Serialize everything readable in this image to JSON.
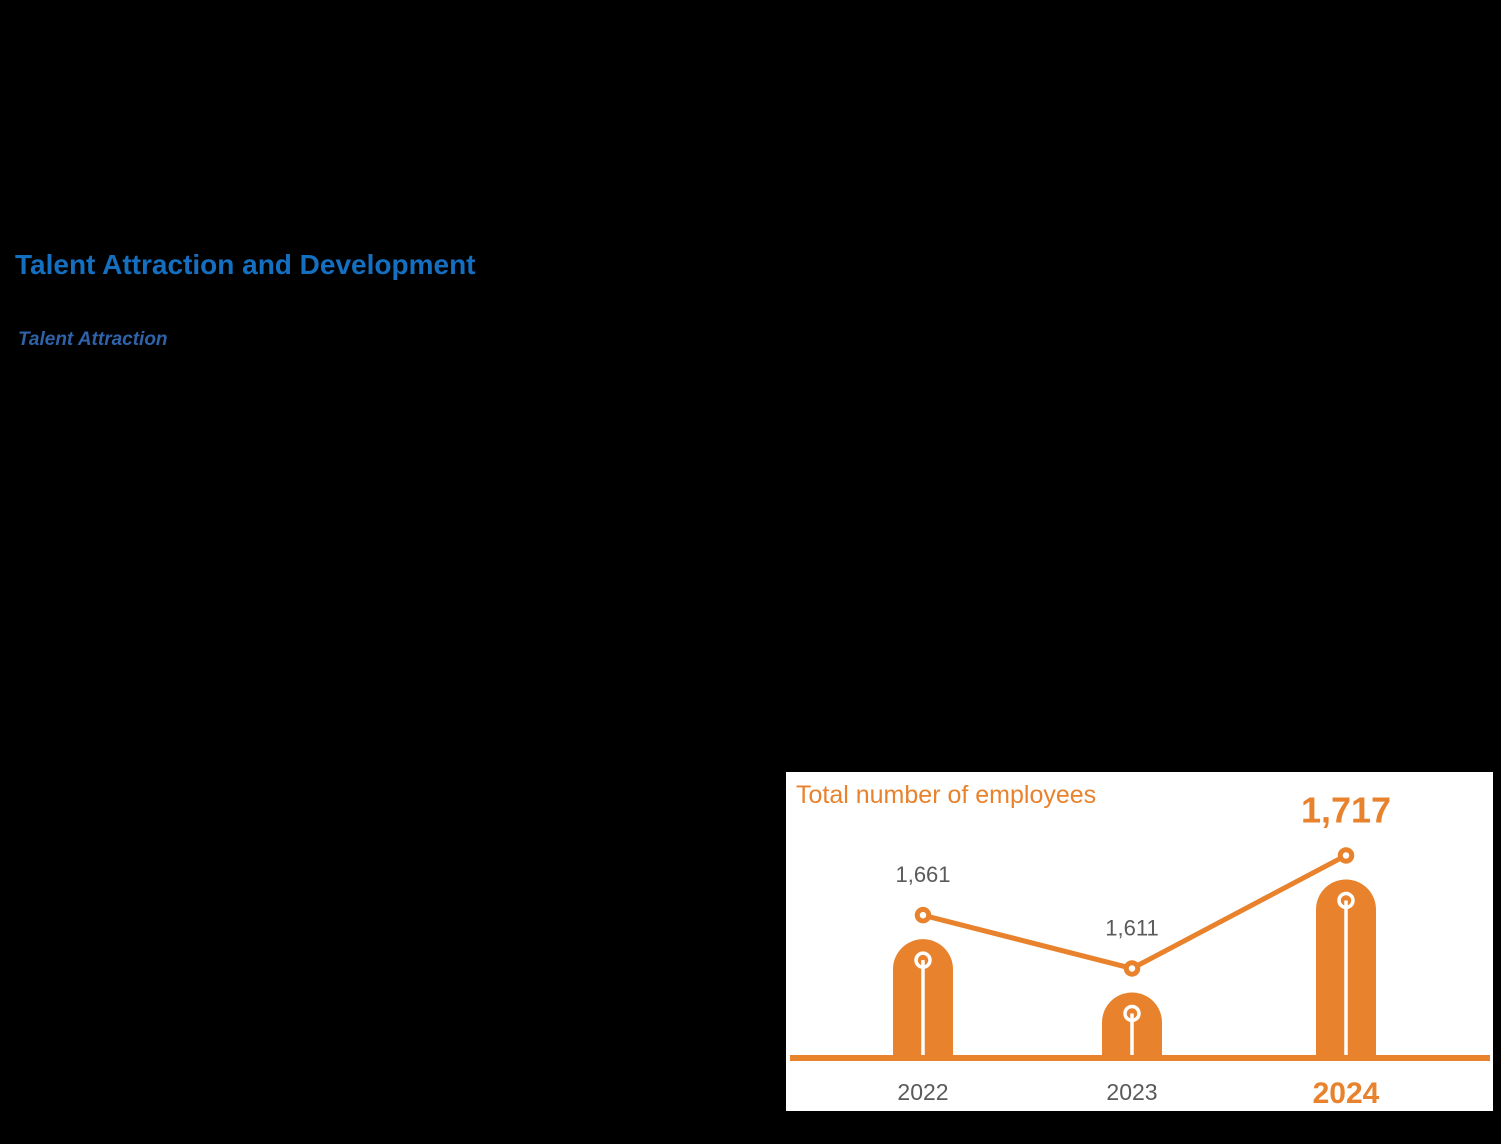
{
  "page": {
    "background_color": "#000000",
    "section_heading": "Talent Attraction and Development",
    "subsection_heading": "Talent Attraction"
  },
  "colors": {
    "heading_blue": "#146FC1",
    "subheading_blue": "#2E62A9",
    "accent_orange": "#E8822C",
    "label_gray": "#5A5A5A",
    "panel_background": "#FFFFFF"
  },
  "chart_data": {
    "type": "bar",
    "title": "Total number of employees",
    "categories": [
      "2022",
      "2023",
      "2024"
    ],
    "values": [
      1661,
      1611,
      1717
    ],
    "value_labels": [
      "1,661",
      "1,611",
      "1,717"
    ],
    "series": [
      {
        "name": "Total number of employees",
        "values": [
          1661,
          1611,
          1717
        ]
      }
    ],
    "highlighted_category": "2024",
    "overlay": "line-with-markers",
    "bar_style": "rounded-top-with-inner-pin",
    "grid": false,
    "legend": false,
    "xlabel": "",
    "ylabel": "",
    "ylim": [
      1520,
      1760
    ]
  }
}
